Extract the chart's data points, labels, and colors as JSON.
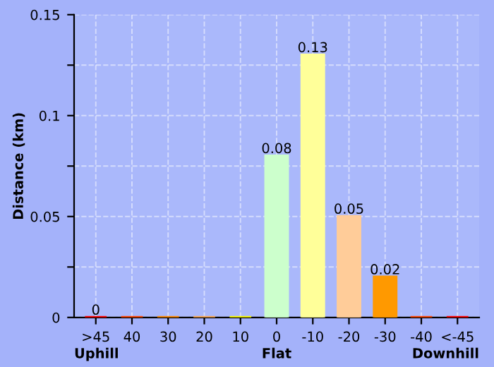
{
  "chart_data": {
    "type": "bar",
    "ylabel": "Distance (km)",
    "categories": [
      ">45",
      "40",
      "30",
      "20",
      "10",
      "0",
      "-10",
      "-20",
      "-30",
      "-40",
      "<-45"
    ],
    "values": [
      0,
      0,
      0,
      0,
      0,
      0.08,
      0.13,
      0.05,
      0.02,
      0,
      0
    ],
    "colors": [
      "#ff0000",
      "#ff4400",
      "#ff8800",
      "#ffaa55",
      "#ffff00",
      "#ccffcc",
      "#ffff99",
      "#ffcc99",
      "#ff9900",
      "#ff4400",
      "#ff0000"
    ],
    "value_labels": [
      "0",
      null,
      null,
      null,
      null,
      "0.08",
      "0.13",
      "0.05",
      "0.02",
      null,
      null
    ],
    "ylim": [
      0,
      0.15
    ],
    "yticks": [
      0,
      {
        "value": 0.025,
        "label": null
      },
      0.05,
      {
        "value": 0.075,
        "label": null
      },
      0.1,
      {
        "value": 0.125,
        "label": null
      },
      0.15
    ],
    "grid": true,
    "annotations": [
      "Uphill",
      "Flat",
      "Downhill"
    ]
  }
}
